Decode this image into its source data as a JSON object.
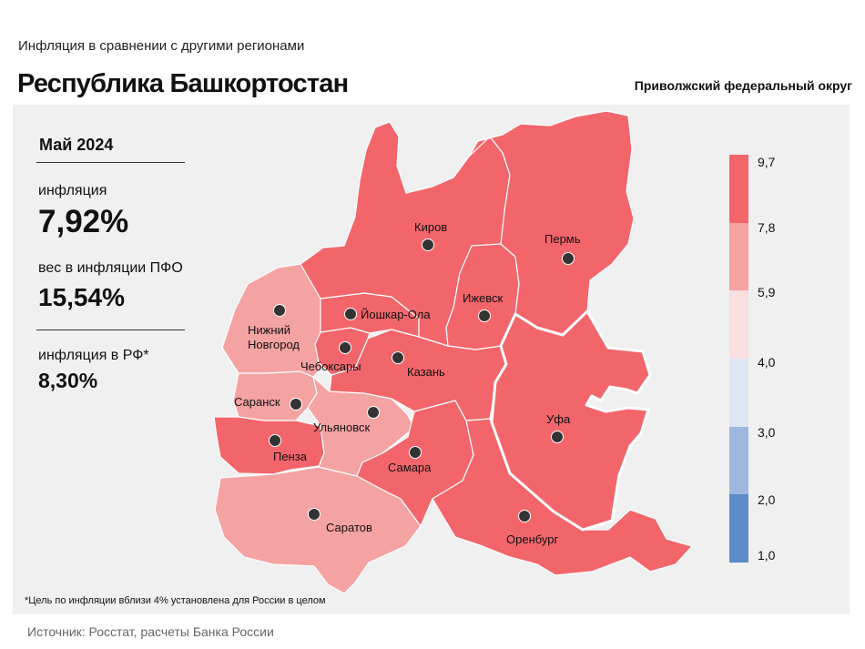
{
  "header": {
    "subtitle": "Инфляция  в сравнении  с другими  регионами",
    "title": "Республика Башкортостан",
    "district": "Приволжский федеральный округ"
  },
  "stats": {
    "period": "Май 2024",
    "inflation_label": "инфляция",
    "inflation_value": "7,92%",
    "weight_label": "вес в инфляции  ПФО",
    "weight_value": "15,54%",
    "rf_label": "инфляция  в РФ*",
    "rf_value": "8,30%"
  },
  "footnote": "*Цель по инфляции вблизи 4% установлена для России в целом",
  "source": "Источник: Росстат, расчеты Банка России",
  "legend": {
    "ticks": [
      "9,7",
      "7,8",
      "5,9",
      "4,0",
      "3,0",
      "2,0",
      "1,0"
    ],
    "colors": [
      "#f2666b",
      "#f5a2a3",
      "#f8dfe0",
      "#dde6f3",
      "#9db7df",
      "#5b8bc9"
    ]
  },
  "map": {
    "selected_region": "Уфа",
    "selected_border_color": "#ffffff",
    "cities": [
      {
        "name": "Киров",
        "bin": "7.8–9.7"
      },
      {
        "name": "Пермь",
        "bin": "7.8–9.7"
      },
      {
        "name": "Ижевск",
        "bin": "7.8–9.7"
      },
      {
        "name": "Йошкар-Ола",
        "bin": "7.8–9.7"
      },
      {
        "name": "Нижний",
        "bin": "5.9–7.8"
      },
      {
        "name": "Новгород",
        "bin": "5.9–7.8"
      },
      {
        "name": "Чебоксары",
        "bin": "7.8–9.7"
      },
      {
        "name": "Казань",
        "bin": "7.8–9.7"
      },
      {
        "name": "Уфа",
        "bin": "7.8–9.7"
      },
      {
        "name": "Саранск",
        "bin": "5.9–7.8"
      },
      {
        "name": "Ульяновск",
        "bin": "5.9–7.8"
      },
      {
        "name": "Пенза",
        "bin": "7.8–9.7"
      },
      {
        "name": "Самара",
        "bin": "7.8–9.7"
      },
      {
        "name": "Саратов",
        "bin": "5.9–7.8"
      },
      {
        "name": "Оренбург",
        "bin": "7.8–9.7"
      }
    ]
  }
}
